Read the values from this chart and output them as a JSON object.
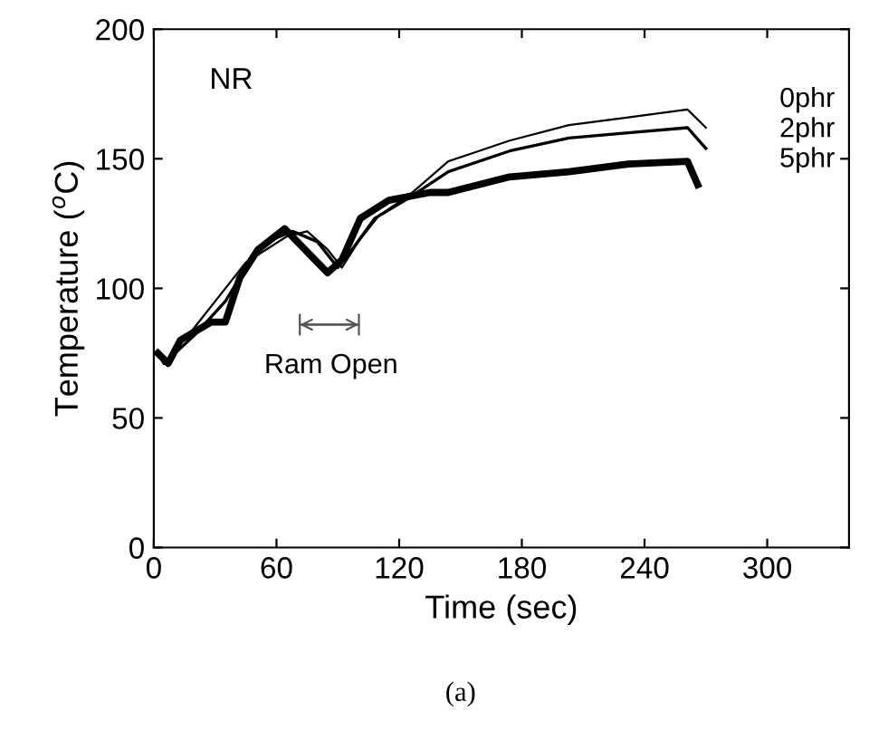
{
  "chart_data": {
    "type": "line",
    "xlabel": "Time (sec)",
    "ylabel": "Temperature ($^{o}$C)",
    "xlim": [
      0,
      340
    ],
    "xticks": [
      0,
      60,
      120,
      180,
      240,
      300
    ],
    "ylim": [
      0,
      200
    ],
    "yticks": [
      0,
      50,
      100,
      150,
      200
    ],
    "grid": false,
    "legend": "top right",
    "marker": "none",
    "series": [
      {
        "name": "0phr",
        "color": "#000000",
        "x": [
          2,
          5,
          20,
          35,
          45,
          55,
          65,
          75,
          85,
          92,
          100,
          110,
          125,
          144,
          174,
          203,
          232,
          261,
          270
        ],
        "values": [
          75,
          71,
          85,
          100,
          110,
          115,
          120,
          122,
          115,
          108,
          118,
          128,
          136,
          149,
          157,
          163,
          166,
          169,
          162
        ]
      },
      {
        "name": "2phr",
        "color": "#000000",
        "x": [
          2,
          5,
          20,
          35,
          45,
          55,
          68,
          80,
          90,
          97,
          108,
          125,
          144,
          174,
          203,
          232,
          261,
          270
        ],
        "values": [
          75,
          71,
          82,
          95,
          108,
          118,
          122,
          118,
          108,
          115,
          127,
          135,
          145,
          153,
          158,
          160,
          162,
          154
        ]
      },
      {
        "name": "5phr",
        "color": "#000000",
        "x": [
          2,
          7,
          13,
          28,
          35,
          42,
          51,
          64,
          85,
          92,
          101,
          115,
          135,
          144,
          174,
          203,
          232,
          261,
          266
        ],
        "values": [
          75,
          71,
          80,
          87,
          87,
          104,
          115,
          123,
          106,
          111,
          127,
          134,
          137,
          137,
          143,
          145,
          148,
          149,
          140
        ]
      }
    ],
    "annotations": [
      "NR",
      "Ram Open",
      "(a)"
    ]
  }
}
